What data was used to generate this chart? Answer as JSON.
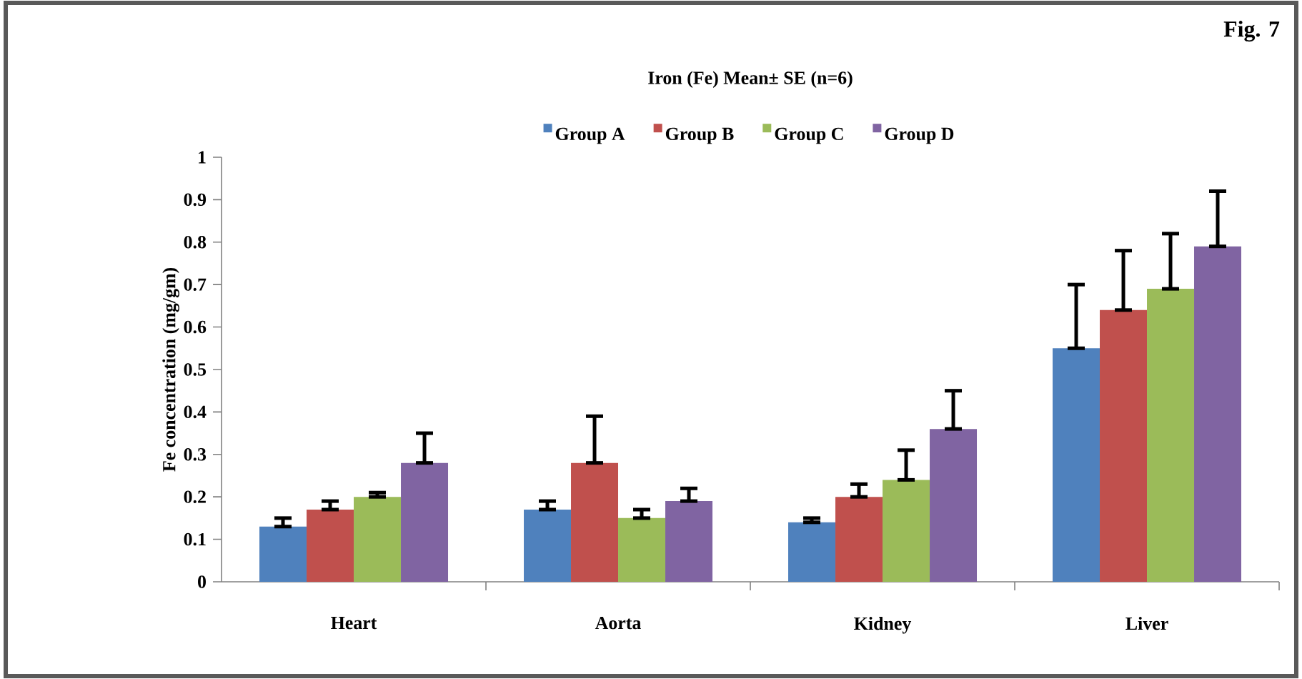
{
  "chart_data": {
    "type": "bar",
    "title": "Iron (Fe) Mean± SE (n=6)",
    "ylabel": "Fe concentration (mg/gm)",
    "categories": [
      "Heart",
      "Aorta",
      "Kidney",
      "Liver"
    ],
    "series": [
      {
        "name": "Group A",
        "color": "#4f81bd",
        "values": [
          0.13,
          0.17,
          0.14,
          0.55
        ],
        "errors": [
          [
            0.13,
            0.15
          ],
          [
            0.17,
            0.19
          ],
          [
            0.14,
            0.15
          ],
          [
            0.55,
            0.7
          ]
        ]
      },
      {
        "name": "Group B",
        "color": "#c0504d",
        "values": [
          0.17,
          0.28,
          0.2,
          0.64
        ],
        "errors": [
          [
            0.17,
            0.19
          ],
          [
            0.28,
            0.39
          ],
          [
            0.2,
            0.23
          ],
          [
            0.64,
            0.78
          ]
        ]
      },
      {
        "name": "Group C",
        "color": "#9bbb59",
        "values": [
          0.2,
          0.15,
          0.24,
          0.69
        ],
        "errors": [
          [
            0.2,
            0.21
          ],
          [
            0.15,
            0.17
          ],
          [
            0.24,
            0.31
          ],
          [
            0.69,
            0.82
          ]
        ]
      },
      {
        "name": "Group D",
        "color": "#8064a2",
        "values": [
          0.28,
          0.19,
          0.36,
          0.79
        ],
        "errors": [
          [
            0.28,
            0.35
          ],
          [
            0.19,
            0.22
          ],
          [
            0.36,
            0.45
          ],
          [
            0.79,
            0.92
          ]
        ]
      }
    ],
    "ylim": [
      0,
      1
    ],
    "yticks": [
      0,
      0.1,
      0.2,
      0.3,
      0.4,
      0.5,
      0.6,
      0.7,
      0.8,
      0.9,
      1
    ],
    "legend": "top",
    "annotations": [
      "Fig. 7"
    ]
  }
}
